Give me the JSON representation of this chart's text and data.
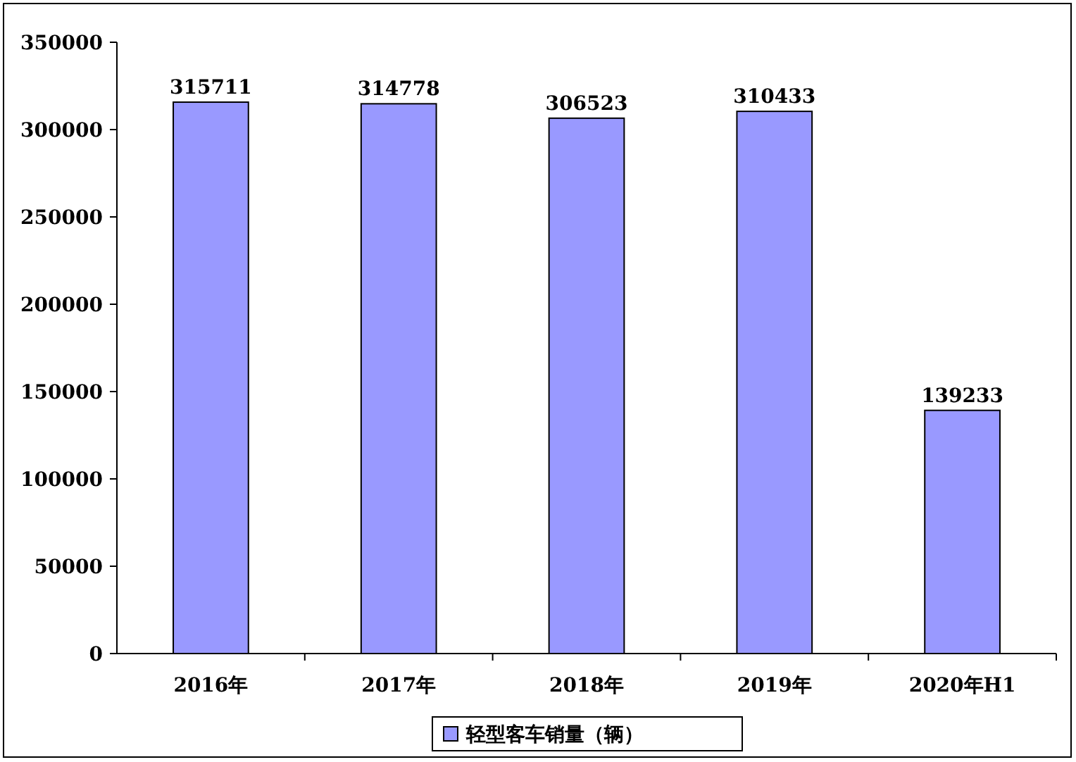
{
  "chart_data": {
    "type": "bar",
    "categories": [
      "2016年",
      "2017年",
      "2018年",
      "2019年",
      "2020年H1"
    ],
    "series": [
      {
        "name": "轻型客车销量（辆）",
        "color": "#9999ff",
        "values": [
          315711,
          314778,
          306523,
          310433,
          139233
        ]
      }
    ],
    "ylim": [
      0,
      350000
    ],
    "yticks": [
      0,
      50000,
      100000,
      150000,
      200000,
      250000,
      300000,
      350000
    ],
    "data_labels": true,
    "legend": "bottom",
    "grid": false
  }
}
